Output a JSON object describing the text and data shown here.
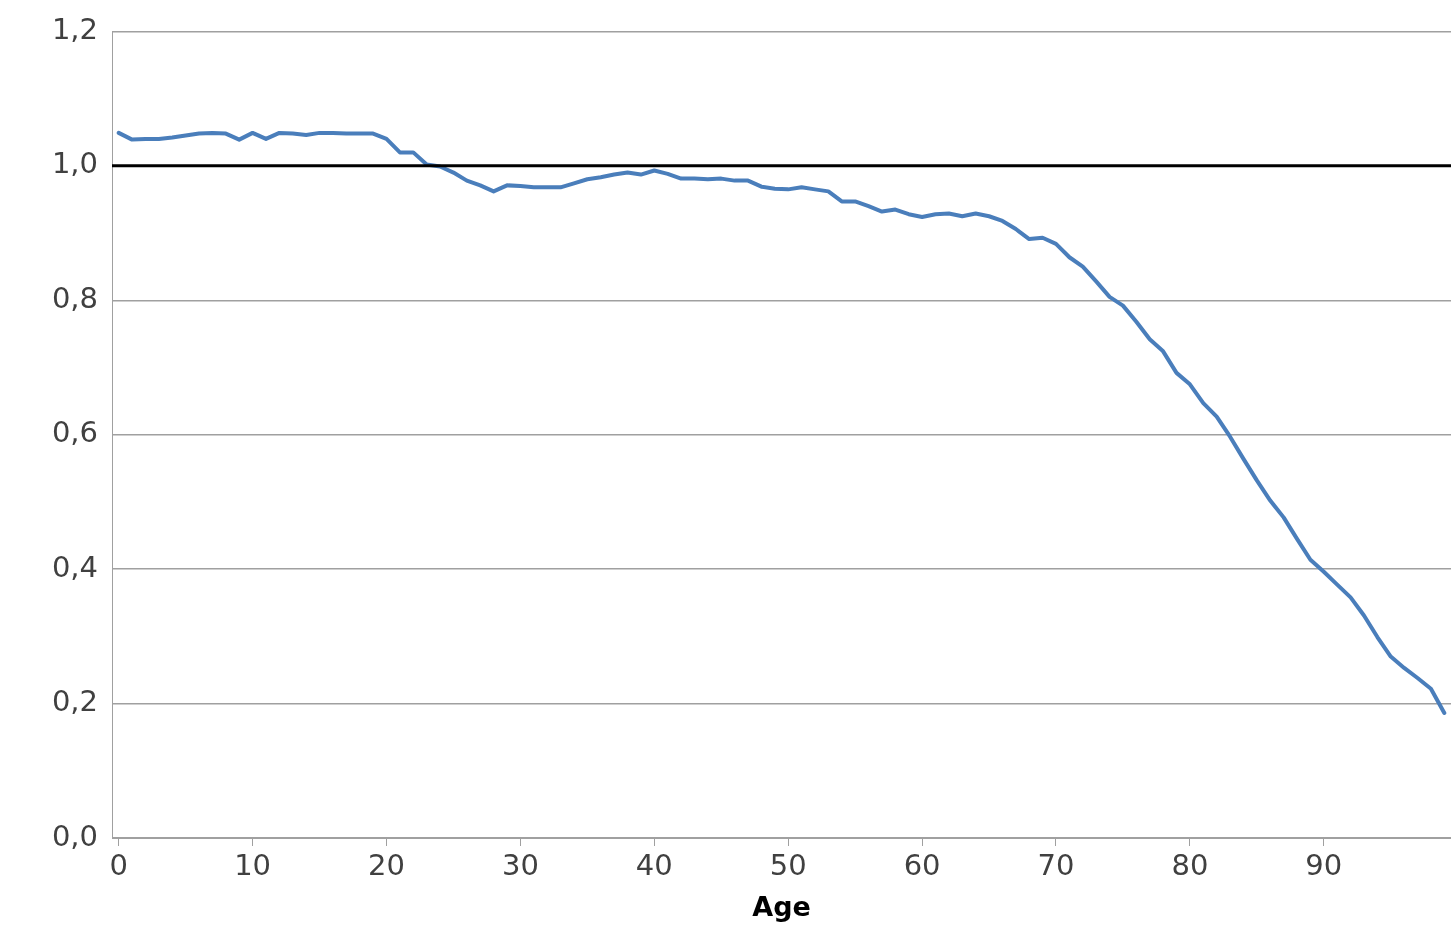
{
  "chart_data": {
    "type": "line",
    "xlabel": "Age",
    "x": [
      0,
      1,
      2,
      3,
      4,
      5,
      6,
      7,
      8,
      9,
      10,
      11,
      12,
      13,
      14,
      15,
      16,
      17,
      18,
      19,
      20,
      21,
      22,
      23,
      24,
      25,
      26,
      27,
      28,
      29,
      30,
      31,
      32,
      33,
      34,
      35,
      36,
      37,
      38,
      39,
      40,
      41,
      42,
      43,
      44,
      45,
      46,
      47,
      48,
      49,
      50,
      51,
      52,
      53,
      54,
      55,
      56,
      57,
      58,
      59,
      60,
      61,
      62,
      63,
      64,
      65,
      66,
      67,
      68,
      69,
      70,
      71,
      72,
      73,
      74,
      75,
      76,
      77,
      78,
      79,
      80,
      81,
      82,
      83,
      84,
      85,
      86,
      87,
      88,
      89,
      90,
      91,
      92,
      93,
      94,
      95,
      96,
      97,
      98,
      99
    ],
    "series": [
      {
        "color": "#4a7ebb",
        "values": [
          1.049,
          1.039,
          1.04,
          1.04,
          1.042,
          1.045,
          1.048,
          1.049,
          1.048,
          1.039,
          1.049,
          1.04,
          1.049,
          1.048,
          1.046,
          1.049,
          1.049,
          1.048,
          1.048,
          1.048,
          1.04,
          1.02,
          1.02,
          1.002,
          0.999,
          0.99,
          0.978,
          0.971,
          0.962,
          0.971,
          0.97,
          0.968,
          0.968,
          0.968,
          0.974,
          0.98,
          0.983,
          0.987,
          0.99,
          0.987,
          0.993,
          0.988,
          0.981,
          0.981,
          0.98,
          0.981,
          0.978,
          0.978,
          0.969,
          0.966,
          0.965,
          0.968,
          0.965,
          0.962,
          0.947,
          0.947,
          0.94,
          0.932,
          0.935,
          0.928,
          0.924,
          0.928,
          0.929,
          0.925,
          0.929,
          0.925,
          0.918,
          0.906,
          0.891,
          0.893,
          0.884,
          0.864,
          0.85,
          0.828,
          0.805,
          0.792,
          0.768,
          0.742,
          0.724,
          0.692,
          0.675,
          0.647,
          0.627,
          0.597,
          0.564,
          0.532,
          0.502,
          0.477,
          0.445,
          0.414,
          0.396,
          0.377,
          0.358,
          0.331,
          0.299,
          0.27,
          0.253,
          0.238,
          0.222,
          0.186
        ]
      }
    ],
    "xlim": [
      -0.5,
      99.5
    ],
    "xticks": [
      0,
      10,
      20,
      30,
      40,
      50,
      60,
      70,
      80,
      90
    ],
    "ylim": [
      0,
      1.2
    ],
    "yticks": [
      {
        "value": 0,
        "label": "0,0"
      },
      {
        "value": 0.2,
        "label": "0,2"
      },
      {
        "value": 0.4,
        "label": "0,4"
      },
      {
        "value": 0.6,
        "label": "0,6"
      },
      {
        "value": 0.8,
        "label": "0,8"
      },
      {
        "value": 1,
        "label": "1,0"
      },
      {
        "value": 1.2,
        "label": "1,2"
      }
    ],
    "ref_lines": [
      {
        "axis": "y",
        "value": 1,
        "color": "#000000"
      }
    ],
    "grid": "y",
    "legend": false,
    "marker": "none",
    "line_style": "solid"
  }
}
